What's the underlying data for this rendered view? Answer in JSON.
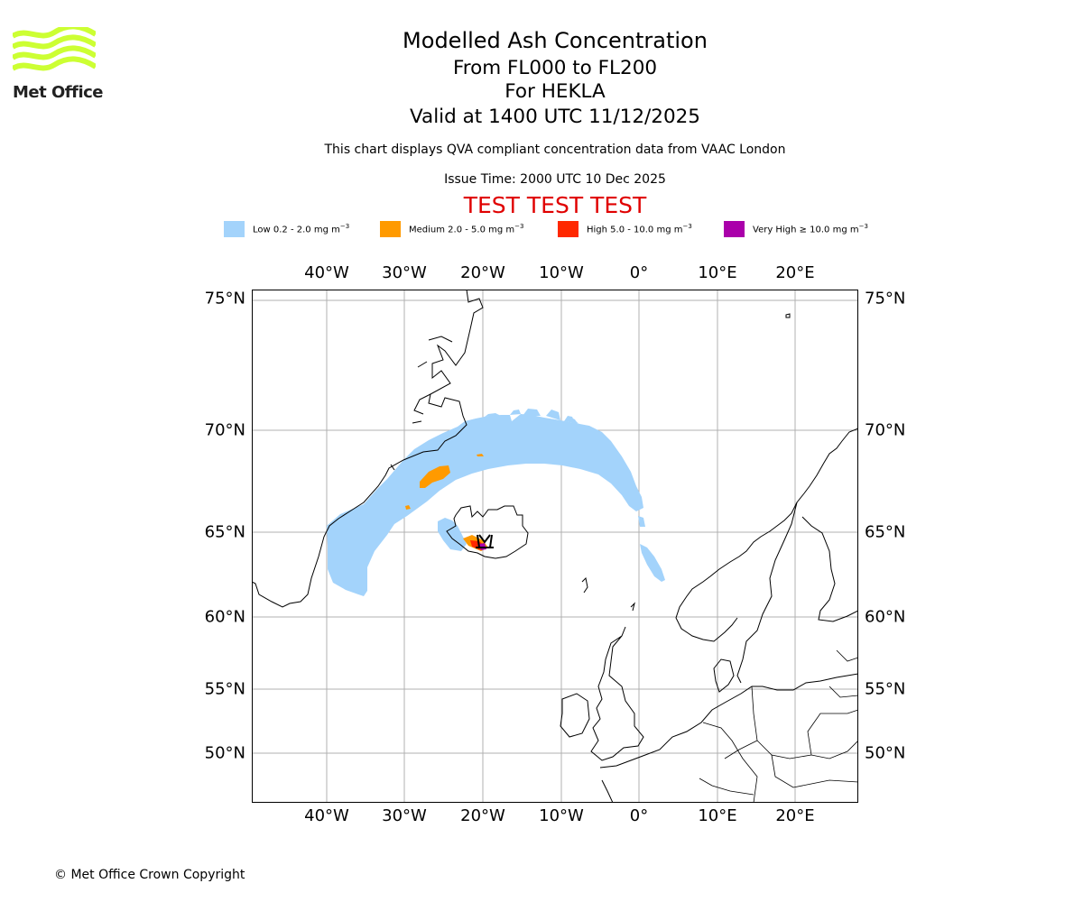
{
  "branding": {
    "logo_text": "Met Office",
    "logo_color": "#ccff33"
  },
  "header": {
    "title": "Modelled Ash Concentration",
    "line2": "From FL000 to FL200",
    "line3": "For HEKLA",
    "line4": "Valid at 1400 UTC 11/12/2025",
    "subtitle": "This chart displays QVA compliant concentration data from VAAC London",
    "issue_time": "Issue Time: 2000 UTC 10 Dec 2025",
    "test_banner": "TEST TEST TEST",
    "test_color": "#e00000"
  },
  "legend": [
    {
      "name": "Low",
      "prefix": "Low 0.2 - 2.0 mg m",
      "exp": "−3",
      "color": "#a3d3fb"
    },
    {
      "name": "Medium",
      "prefix": "Medium 2.0 - 5.0 mg m",
      "exp": "−3",
      "color": "#ff9a00"
    },
    {
      "name": "High",
      "prefix": "High 5.0 - 10.0 mg m",
      "exp": "−3",
      "color": "#ff2800"
    },
    {
      "name": "Very High",
      "prefix": "Very High  ≥  10.0 mg m",
      "exp": "−3",
      "color": "#aa00aa"
    }
  ],
  "map": {
    "longitudes": [
      "40°W",
      "30°W",
      "20°W",
      "10°W",
      "0°",
      "10°E",
      "20°E"
    ],
    "latitudes": [
      "75°N",
      "70°N",
      "65°N",
      "60°N",
      "55°N",
      "50°N"
    ],
    "volcano": "HEKLA",
    "gridline_color": "#b0b0b0"
  },
  "footer": {
    "copyright": "© Met Office Crown Copyright"
  }
}
